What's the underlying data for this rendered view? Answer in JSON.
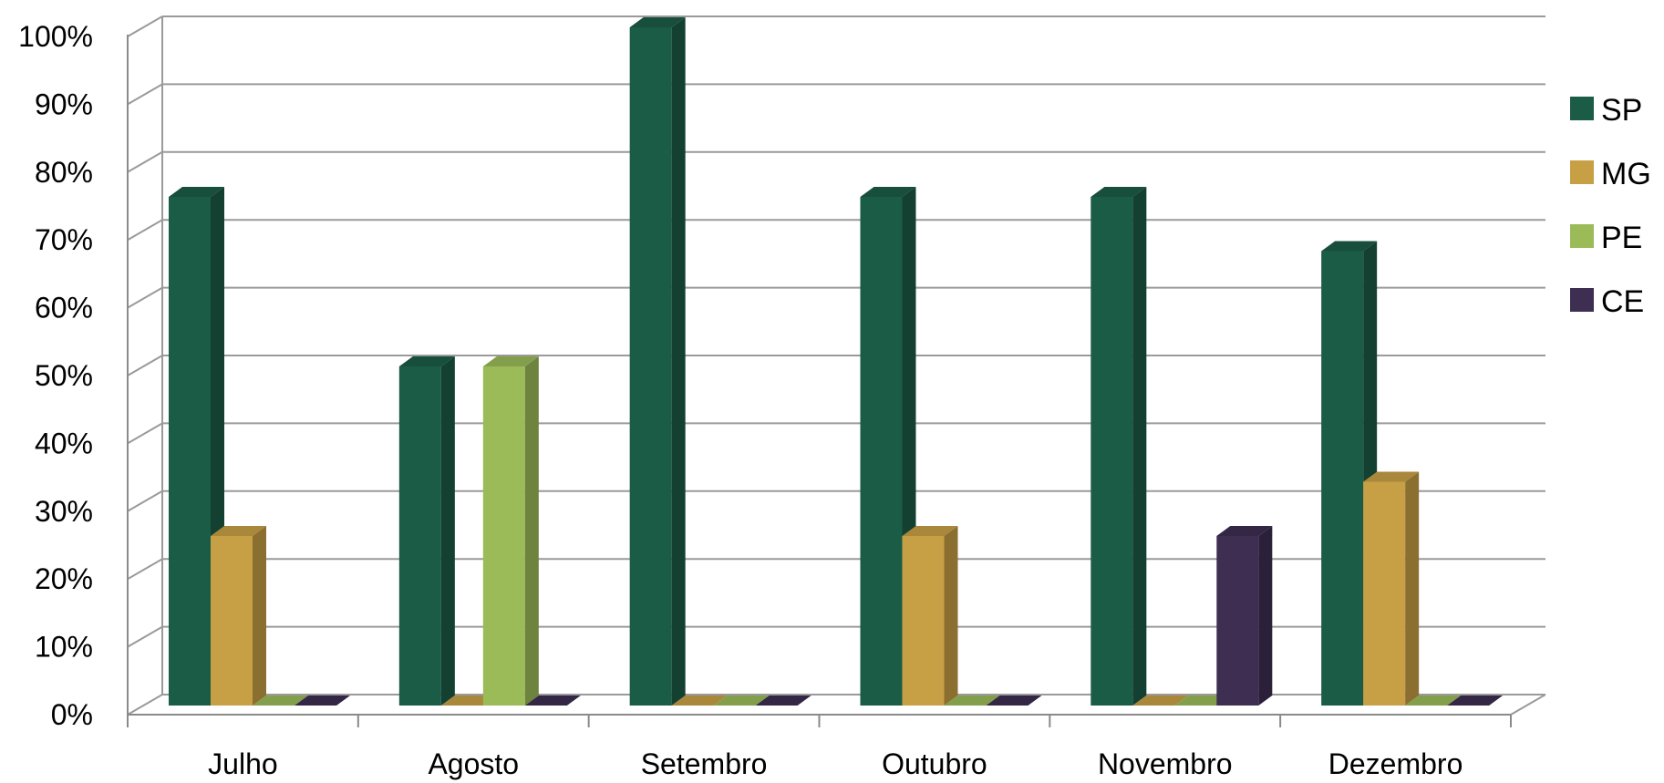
{
  "chart_data": {
    "type": "bar",
    "style": "3d-clustered-column",
    "categories": [
      "Julho",
      "Agosto",
      "Setembro",
      "Outubro",
      "Novembro",
      "Dezembro"
    ],
    "series": [
      {
        "name": "SP",
        "color": "#1B5C46",
        "values": [
          75,
          50,
          100,
          75,
          75,
          67
        ]
      },
      {
        "name": "MG",
        "color": "#C79F45",
        "values": [
          25,
          0,
          0,
          25,
          0,
          33
        ]
      },
      {
        "name": "PE",
        "color": "#9BBB59",
        "values": [
          0,
          50,
          0,
          0,
          0,
          0
        ]
      },
      {
        "name": "CE",
        "color": "#3D2E52",
        "values": [
          0,
          0,
          0,
          0,
          25,
          0
        ]
      }
    ],
    "ylim": [
      0,
      100
    ],
    "yticks": [
      "0%",
      "10%",
      "20%",
      "30%",
      "40%",
      "50%",
      "60%",
      "70%",
      "80%",
      "90%",
      "100%"
    ],
    "grid": true,
    "legend_position": "right",
    "title": "",
    "xlabel": "",
    "ylabel": ""
  }
}
